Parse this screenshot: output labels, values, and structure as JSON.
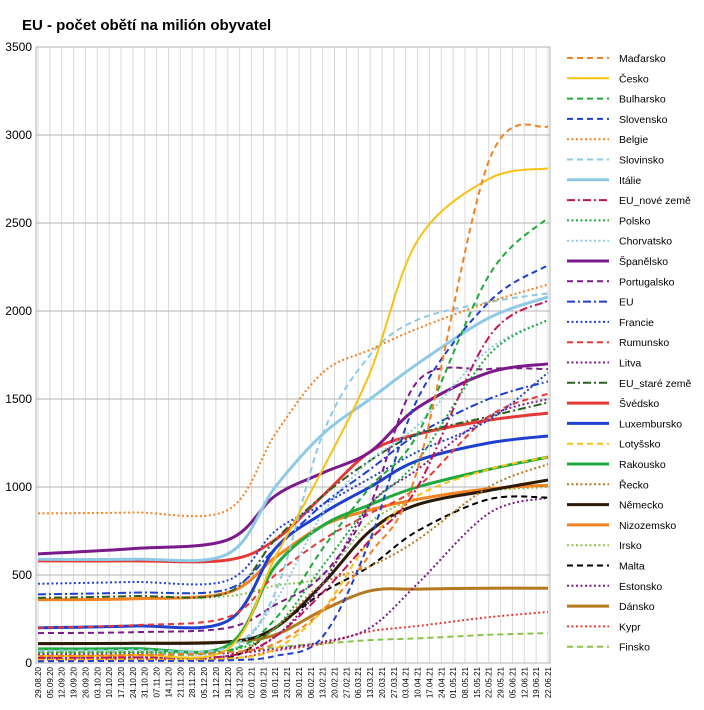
{
  "chart_data": {
    "type": "line",
    "title": "EU - počet obětí na milión obyvatel",
    "xlabel": "",
    "ylabel": "",
    "ylim": [
      0,
      3500
    ],
    "yticks": [
      0,
      500,
      1000,
      1500,
      2000,
      2500,
      3000,
      3500
    ],
    "grid": "vertical and horizontal",
    "legend_position": "right",
    "x_tick_labels": [
      "29.08.20",
      "05.09.20",
      "12.09.20",
      "19.09.20",
      "26.09.20",
      "03.10.20",
      "10.10.20",
      "17.10.20",
      "24.10.20",
      "31.10.20",
      "07.11.20",
      "14.11.20",
      "21.11.20",
      "28.11.20",
      "05.12.20",
      "12.12.20",
      "19.12.20",
      "26.12.20",
      "02.01.21",
      "09.01.21",
      "16.01.21",
      "23.01.21",
      "30.01.21",
      "06.02.21",
      "13.02.21",
      "20.02.21",
      "27.02.21",
      "06.03.21",
      "13.03.21",
      "20.03.21",
      "27.03.21",
      "03.04.21",
      "10.04.21",
      "17.04.21",
      "24.04.21",
      "01.05.21",
      "08.05.21",
      "15.05.21",
      "22.05.21",
      "29.05.21",
      "05.06.21",
      "12.06.21",
      "19.06.21",
      "22.06.21"
    ],
    "x_index": [
      0,
      8,
      16,
      20,
      24,
      28,
      32,
      38,
      43
    ],
    "series": [
      {
        "name": "Maďarsko",
        "color": "#f58220",
        "dash": "dashed",
        "width": 2,
        "values": [
          40,
          45,
          60,
          110,
          300,
          620,
          1100,
          2850,
          3050
        ]
      },
      {
        "name": "Česko",
        "color": "#f9c113",
        "dash": "solid",
        "width": 2,
        "values": [
          40,
          45,
          80,
          600,
          1100,
          1650,
          2400,
          2750,
          2810
        ]
      },
      {
        "name": "Bulharsko",
        "color": "#1faa3c",
        "dash": "dashed",
        "width": 2,
        "values": [
          40,
          45,
          70,
          250,
          650,
          1000,
          1300,
          2200,
          2530
        ]
      },
      {
        "name": "Slovensko",
        "color": "#1f3fcf",
        "dash": "dashed",
        "width": 2,
        "values": [
          10,
          12,
          15,
          40,
          150,
          700,
          1500,
          2050,
          2260
        ]
      },
      {
        "name": "Belgie",
        "color": "#f58220",
        "dash": "dotted",
        "width": 2,
        "values": [
          850,
          855,
          870,
          1300,
          1650,
          1780,
          1900,
          2050,
          2150
        ]
      },
      {
        "name": "Slovinsko",
        "color": "#8ecae6",
        "dash": "dashed",
        "width": 2,
        "values": [
          70,
          75,
          90,
          400,
          1300,
          1750,
          1950,
          2050,
          2100
        ]
      },
      {
        "name": "Itálie",
        "color": "#8ecae6",
        "dash": "solid",
        "width": 3,
        "values": [
          590,
          590,
          620,
          1000,
          1300,
          1500,
          1700,
          1960,
          2080
        ]
      },
      {
        "name": "EU_nové země",
        "color": "#c0145a",
        "dash": "dashdot",
        "width": 2,
        "values": [
          30,
          32,
          40,
          150,
          400,
          700,
          1000,
          1850,
          2060
        ]
      },
      {
        "name": "Polsko",
        "color": "#1faa3c",
        "dash": "dotted",
        "width": 2,
        "values": [
          60,
          62,
          70,
          200,
          550,
          900,
          1150,
          1750,
          1950
        ]
      },
      {
        "name": "Chorvatsko",
        "color": "#8ecae6",
        "dash": "dotted",
        "width": 2,
        "values": [
          60,
          62,
          70,
          350,
          850,
          1150,
          1350,
          1780,
          1950
        ]
      },
      {
        "name": "Španělsko",
        "color": "#7b1a8a",
        "dash": "solid",
        "width": 3,
        "values": [
          620,
          650,
          700,
          950,
          1080,
          1200,
          1450,
          1650,
          1700
        ]
      },
      {
        "name": "Portugalsko",
        "color": "#7b1a8a",
        "dash": "dashed",
        "width": 2,
        "values": [
          170,
          175,
          200,
          330,
          500,
          900,
          1600,
          1670,
          1670
        ]
      },
      {
        "name": "EU",
        "color": "#1f3fcf",
        "dash": "dashdot",
        "width": 2,
        "values": [
          390,
          400,
          420,
          650,
          900,
          1100,
          1300,
          1500,
          1600
        ]
      },
      {
        "name": "Francie",
        "color": "#1f3fcf",
        "dash": "dotted",
        "width": 2,
        "values": [
          450,
          460,
          470,
          750,
          900,
          1050,
          1200,
          1380,
          1650
        ]
      },
      {
        "name": "Rumunsko",
        "color": "#e53935",
        "dash": "dashed",
        "width": 2,
        "values": [
          200,
          215,
          260,
          500,
          700,
          850,
          1000,
          1400,
          1530
        ]
      },
      {
        "name": "Litva",
        "color": "#7b1a8a",
        "dash": "dotted",
        "width": 2,
        "values": [
          30,
          32,
          40,
          150,
          450,
          900,
          1100,
          1400,
          1500
        ]
      },
      {
        "name": "EU_staré země",
        "color": "#2e5e1e",
        "dash": "dashdot",
        "width": 2,
        "values": [
          370,
          380,
          400,
          700,
          950,
          1150,
          1300,
          1400,
          1480
        ]
      },
      {
        "name": "Švédsko",
        "color": "#e53935",
        "dash": "solid",
        "width": 3,
        "values": [
          580,
          580,
          585,
          700,
          950,
          1200,
          1300,
          1380,
          1420
        ]
      },
      {
        "name": "Luxembursko",
        "color": "#1f3fcf",
        "dash": "solid",
        "width": 3,
        "values": [
          200,
          210,
          240,
          650,
          850,
          1000,
          1150,
          1250,
          1290
        ]
      },
      {
        "name": "Lotyšsko",
        "color": "#f9c113",
        "dash": "dashed",
        "width": 2,
        "values": [
          20,
          22,
          25,
          80,
          300,
          700,
          950,
          1100,
          1170
        ]
      },
      {
        "name": "Rakousko",
        "color": "#1faa3c",
        "dash": "solid",
        "width": 3,
        "values": [
          80,
          82,
          100,
          550,
          780,
          900,
          1000,
          1100,
          1170
        ]
      },
      {
        "name": "Řecko",
        "color": "#b5781e",
        "dash": "dotted",
        "width": 2,
        "values": [
          30,
          32,
          40,
          200,
          450,
          550,
          700,
          1000,
          1130
        ]
      },
      {
        "name": "Německo",
        "color": "#2a1a0a",
        "dash": "solid",
        "width": 3,
        "values": [
          110,
          112,
          120,
          200,
          450,
          750,
          900,
          980,
          1040
        ]
      },
      {
        "name": "Nizozemsko",
        "color": "#f58220",
        "dash": "solid",
        "width": 3,
        "values": [
          360,
          365,
          400,
          600,
          780,
          870,
          930,
          990,
          1010
        ]
      },
      {
        "name": "Irsko",
        "color": "#8bc34a",
        "dash": "dotted",
        "width": 2,
        "values": [
          360,
          362,
          380,
          440,
          500,
          800,
          930,
          980,
          1000
        ]
      },
      {
        "name": "Malta",
        "color": "#000000",
        "dash": "dashed",
        "width": 2,
        "values": [
          20,
          22,
          30,
          200,
          400,
          550,
          750,
          930,
          940
        ]
      },
      {
        "name": "Estonsko",
        "color": "#7b1a8a",
        "dash": "dotted",
        "width": 2,
        "values": [
          50,
          52,
          55,
          80,
          120,
          200,
          450,
          850,
          940
        ]
      },
      {
        "name": "Dánsko",
        "color": "#b5781e",
        "dash": "solid",
        "width": 3,
        "values": [
          110,
          112,
          120,
          160,
          300,
          410,
          420,
          425,
          425
        ]
      },
      {
        "name": "Kypr",
        "color": "#e53935",
        "dash": "dotted",
        "width": 2,
        "values": [
          20,
          21,
          25,
          70,
          110,
          180,
          210,
          260,
          290
        ]
      },
      {
        "name": "Finsko",
        "color": "#8bc34a",
        "dash": "dashed",
        "width": 2,
        "values": [
          60,
          61,
          62,
          90,
          110,
          130,
          140,
          160,
          170
        ]
      }
    ]
  }
}
